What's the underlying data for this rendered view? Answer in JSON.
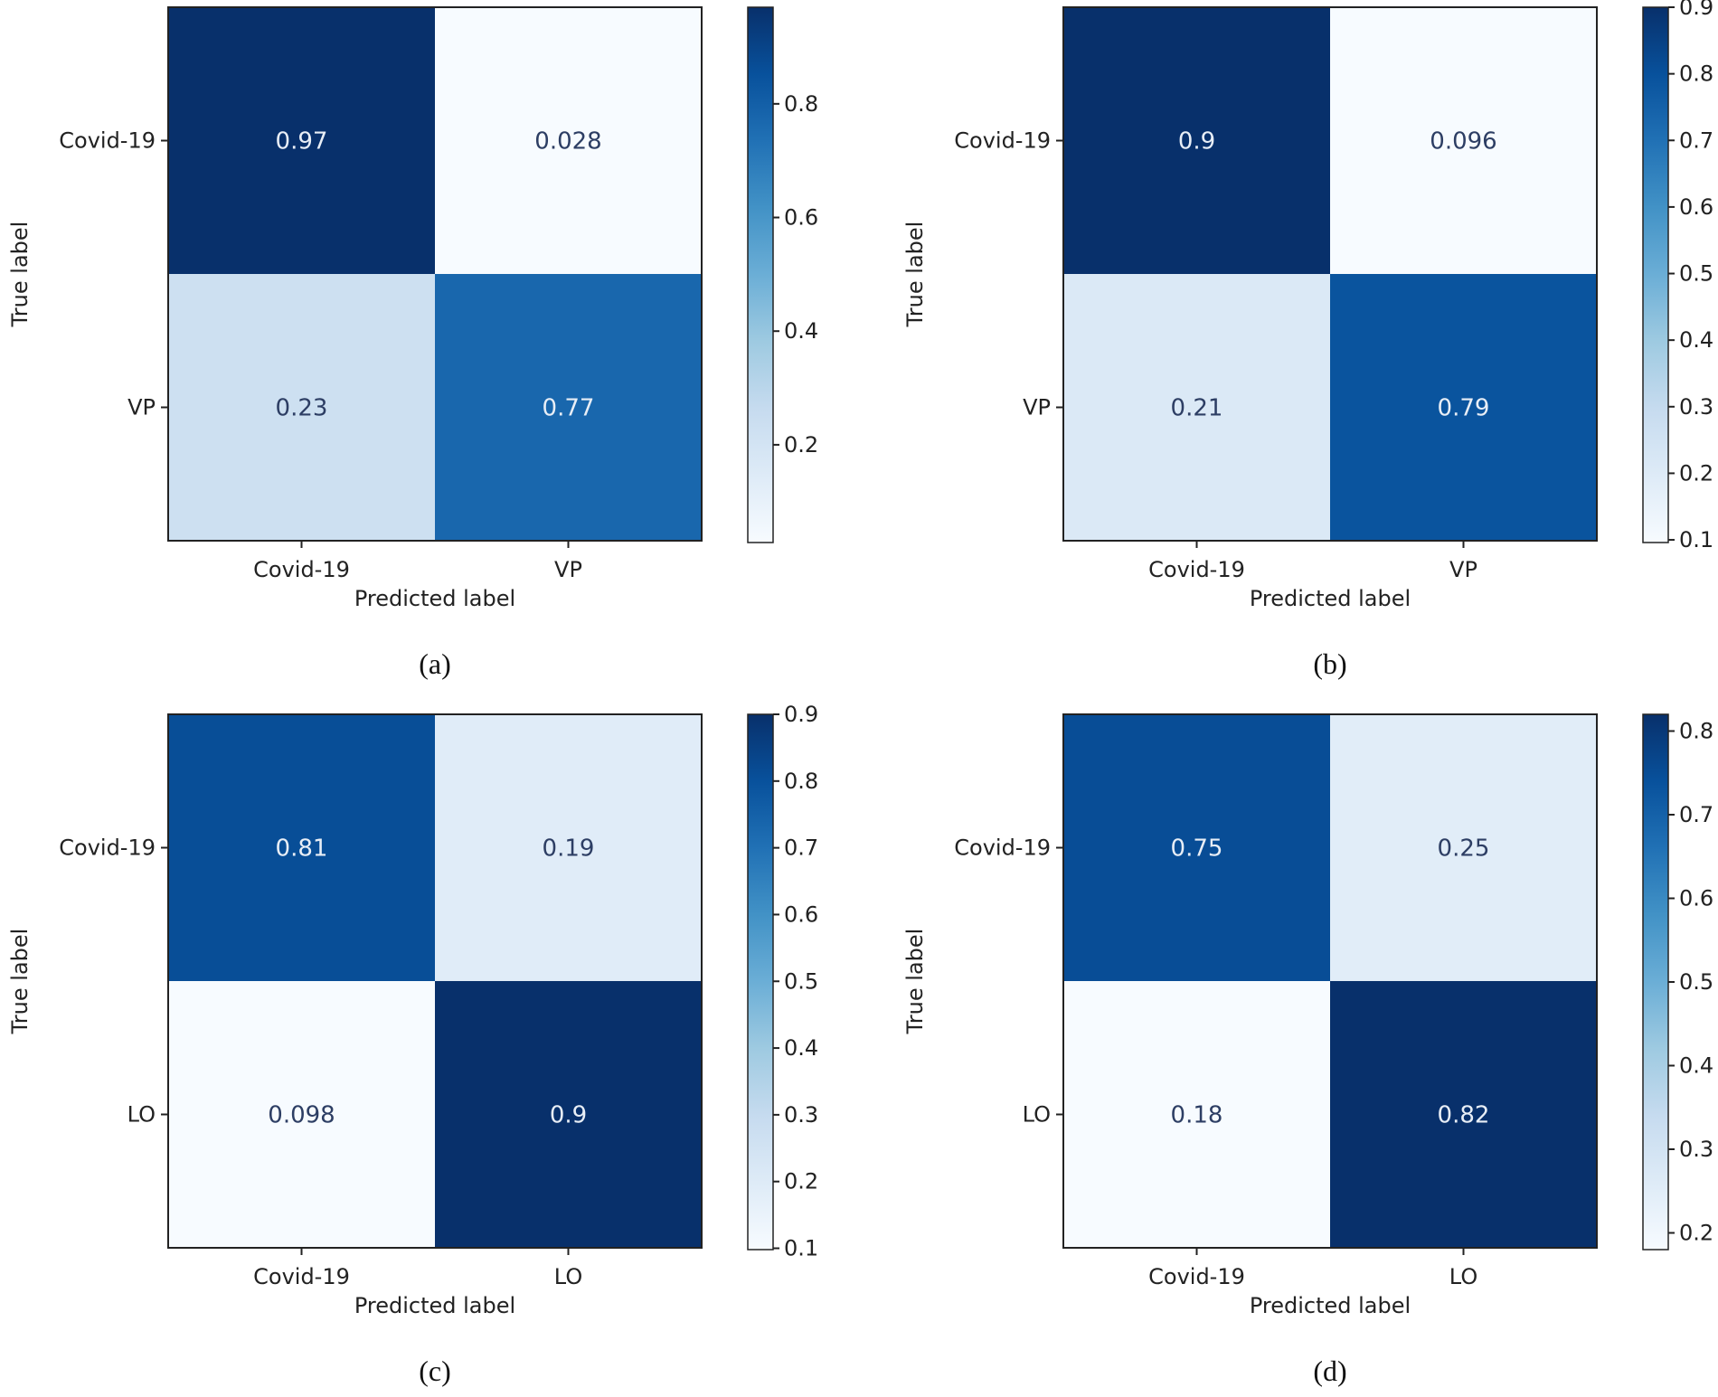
{
  "chart_data": [
    {
      "type": "heatmap",
      "caption": "(a)",
      "xlabel": "Predicted label",
      "ylabel": "True label",
      "x_categories": [
        "Covid-19",
        "VP"
      ],
      "y_categories": [
        "Covid-19",
        "VP"
      ],
      "values": [
        [
          0.97,
          0.028
        ],
        [
          0.23,
          0.77
        ]
      ],
      "value_labels": [
        [
          "0.97",
          "0.028"
        ],
        [
          "0.23",
          "0.77"
        ]
      ],
      "colorbar": {
        "range": [
          0.028,
          0.97
        ],
        "ticks": [
          0.2,
          0.4,
          0.6,
          0.8
        ],
        "tick_labels": [
          "0.2",
          "0.4",
          "0.6",
          "0.8"
        ]
      },
      "colormap": "Blues"
    },
    {
      "type": "heatmap",
      "caption": "(b)",
      "xlabel": "Predicted label",
      "ylabel": "True label",
      "x_categories": [
        "Covid-19",
        "VP"
      ],
      "y_categories": [
        "Covid-19",
        "VP"
      ],
      "values": [
        [
          0.9,
          0.096
        ],
        [
          0.21,
          0.79
        ]
      ],
      "value_labels": [
        [
          "0.9",
          "0.096"
        ],
        [
          "0.21",
          "0.79"
        ]
      ],
      "colorbar": {
        "range": [
          0.096,
          0.9
        ],
        "ticks": [
          0.1,
          0.2,
          0.3,
          0.4,
          0.5,
          0.6,
          0.7,
          0.8,
          0.9
        ],
        "tick_labels": [
          "0.1",
          "0.2",
          "0.3",
          "0.4",
          "0.5",
          "0.6",
          "0.7",
          "0.8",
          "0.9"
        ]
      },
      "colormap": "Blues"
    },
    {
      "type": "heatmap",
      "caption": "(c)",
      "xlabel": "Predicted label",
      "ylabel": "True label",
      "x_categories": [
        "Covid-19",
        "LO"
      ],
      "y_categories": [
        "Covid-19",
        "LO"
      ],
      "values": [
        [
          0.81,
          0.19
        ],
        [
          0.098,
          0.9
        ]
      ],
      "value_labels": [
        [
          "0.81",
          "0.19"
        ],
        [
          "0.098",
          "0.9"
        ]
      ],
      "colorbar": {
        "range": [
          0.098,
          0.9
        ],
        "ticks": [
          0.1,
          0.2,
          0.3,
          0.4,
          0.5,
          0.6,
          0.7,
          0.8,
          0.9
        ],
        "tick_labels": [
          "0.1",
          "0.2",
          "0.3",
          "0.4",
          "0.5",
          "0.6",
          "0.7",
          "0.8",
          "0.9"
        ]
      },
      "colormap": "Blues"
    },
    {
      "type": "heatmap",
      "caption": "(d)",
      "xlabel": "Predicted label",
      "ylabel": "True label",
      "x_categories": [
        "Covid-19",
        "LO"
      ],
      "y_categories": [
        "Covid-19",
        "LO"
      ],
      "values": [
        [
          0.75,
          0.25
        ],
        [
          0.18,
          0.82
        ]
      ],
      "value_labels": [
        [
          "0.75",
          "0.25"
        ],
        [
          "0.18",
          "0.82"
        ]
      ],
      "colorbar": {
        "range": [
          0.18,
          0.82
        ],
        "ticks": [
          0.2,
          0.3,
          0.4,
          0.5,
          0.6,
          0.7,
          0.8
        ],
        "tick_labels": [
          "0.2",
          "0.3",
          "0.4",
          "0.5",
          "0.6",
          "0.7",
          "0.8"
        ]
      },
      "colormap": "Blues"
    }
  ]
}
